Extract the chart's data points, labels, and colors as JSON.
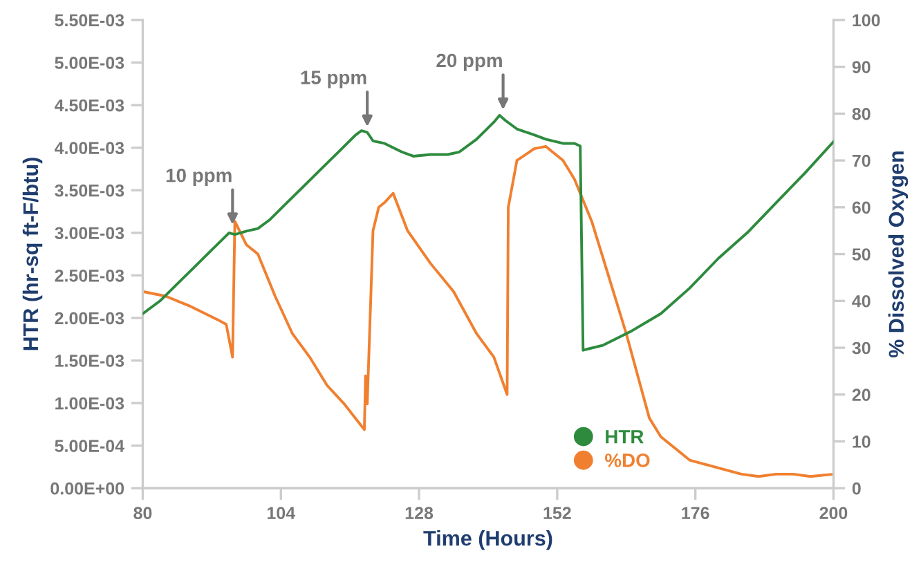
{
  "chart_data": {
    "type": "line",
    "xlabel": "Time (Hours)",
    "ylabel": "HTR (hr-sq ft-F/btu)",
    "y2label": "% Dissolved Oxygen",
    "xlim": [
      80,
      200
    ],
    "xticks": [
      80,
      104,
      128,
      152,
      176,
      200
    ],
    "ylim": [
      0,
      0.0055
    ],
    "yticks": [
      {
        "value": 0,
        "label": "0.00E+00"
      },
      {
        "value": 0.0005,
        "label": "5.00E-04"
      },
      {
        "value": 0.001,
        "label": "1.00E-03"
      },
      {
        "value": 0.0015,
        "label": "1.50E-03"
      },
      {
        "value": 0.002,
        "label": "2.00E-03"
      },
      {
        "value": 0.0025,
        "label": "2.50E-03"
      },
      {
        "value": 0.003,
        "label": "3.00E-03"
      },
      {
        "value": 0.0035,
        "label": "3.50E-03"
      },
      {
        "value": 0.004,
        "label": "4.00E-03"
      },
      {
        "value": 0.0045,
        "label": "4.50E-03"
      },
      {
        "value": 0.005,
        "label": "5.00E-03"
      },
      {
        "value": 0.0055,
        "label": "5.50E-03"
      }
    ],
    "y2lim": [
      0,
      100
    ],
    "y2ticks": [
      0,
      10,
      20,
      30,
      40,
      50,
      60,
      70,
      80,
      90,
      100
    ],
    "grid": false,
    "legend": "bottom right",
    "marker": "none",
    "line_style": "solid",
    "annotations": [
      {
        "text": "10 ppm",
        "x": 95.6,
        "y": 0.00305
      },
      {
        "text": "15 ppm",
        "x": 119,
        "y": 0.0042
      },
      {
        "text": "20 ppm",
        "x": 142.6,
        "y": 0.0044
      }
    ],
    "series": [
      {
        "name": "HTR",
        "color": "#2e8b3e",
        "x": [
          80,
          83,
          86,
          89,
          92,
          95,
          96,
          98,
          100,
          102,
          105,
          108,
          111,
          114,
          117,
          118,
          119,
          120,
          122,
          125,
          127,
          130,
          133,
          135,
          138,
          141,
          142,
          143,
          145,
          148,
          150,
          153,
          155,
          156,
          156.5,
          157,
          160,
          165,
          170,
          175,
          180,
          185,
          190,
          195,
          200
        ],
        "values": [
          0.00205,
          0.0022,
          0.0024,
          0.0026,
          0.0028,
          0.003,
          0.00298,
          0.00302,
          0.00305,
          0.00315,
          0.00335,
          0.00355,
          0.00375,
          0.00395,
          0.00415,
          0.0042,
          0.00418,
          0.00408,
          0.00405,
          0.00395,
          0.0039,
          0.00392,
          0.00392,
          0.00395,
          0.0041,
          0.0043,
          0.00438,
          0.00432,
          0.00422,
          0.00415,
          0.0041,
          0.00405,
          0.00405,
          0.00402,
          0.00162,
          0.00163,
          0.00168,
          0.00185,
          0.00205,
          0.00235,
          0.0027,
          0.003,
          0.00335,
          0.0037,
          0.00407
        ]
      },
      {
        "name": "%DO",
        "color": "#f08030",
        "axis": "y2",
        "x": [
          80,
          84,
          88,
          93,
          94.5,
          95.6,
          96,
          98,
          100,
          103,
          106,
          109,
          112,
          115,
          118.5,
          118.7,
          119,
          120,
          121,
          122,
          123.5,
          126,
          130,
          134,
          138,
          141,
          143.3,
          143.5,
          145,
          148,
          150,
          153,
          155,
          158,
          161,
          164,
          166,
          168,
          170,
          172,
          175,
          178,
          181,
          184,
          187,
          190,
          193,
          196,
          200
        ],
        "values": [
          42,
          41,
          39,
          36,
          35,
          28,
          57,
          52,
          50,
          41,
          33,
          28,
          22,
          18,
          12.5,
          24,
          18,
          55,
          60,
          61,
          63,
          55,
          48,
          42,
          33,
          28,
          20,
          60,
          70,
          72.5,
          73,
          70,
          66,
          57,
          45,
          33,
          24,
          15,
          11,
          9,
          6,
          5,
          4,
          3,
          2.5,
          3,
          3,
          2.5,
          3
        ]
      }
    ]
  }
}
